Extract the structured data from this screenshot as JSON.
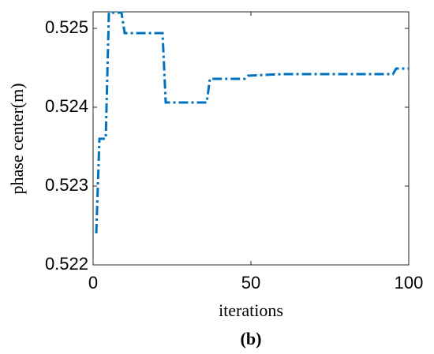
{
  "chart_data": {
    "type": "line",
    "x_label": "iterations",
    "y_label": "phase center(m)",
    "caption": "(b)",
    "x": [
      1,
      2,
      4,
      5,
      9,
      10,
      22,
      23,
      36,
      37,
      48,
      49,
      60,
      95,
      96,
      100
    ],
    "series": [
      {
        "name": "phase center",
        "color": "#0072bd",
        "values": [
          0.5224,
          0.5236,
          0.5236,
          0.5252,
          0.5252,
          0.52494,
          0.52494,
          0.52406,
          0.52406,
          0.52436,
          0.52436,
          0.5244,
          0.52442,
          0.52442,
          0.52449,
          0.52449
        ]
      }
    ],
    "xlim": [
      0,
      100
    ],
    "xticks": [
      0,
      50,
      100
    ],
    "ylim": [
      0.522,
      0.52521
    ],
    "yticks": [
      0.522,
      0.523,
      0.524,
      0.525
    ],
    "grid": false
  }
}
